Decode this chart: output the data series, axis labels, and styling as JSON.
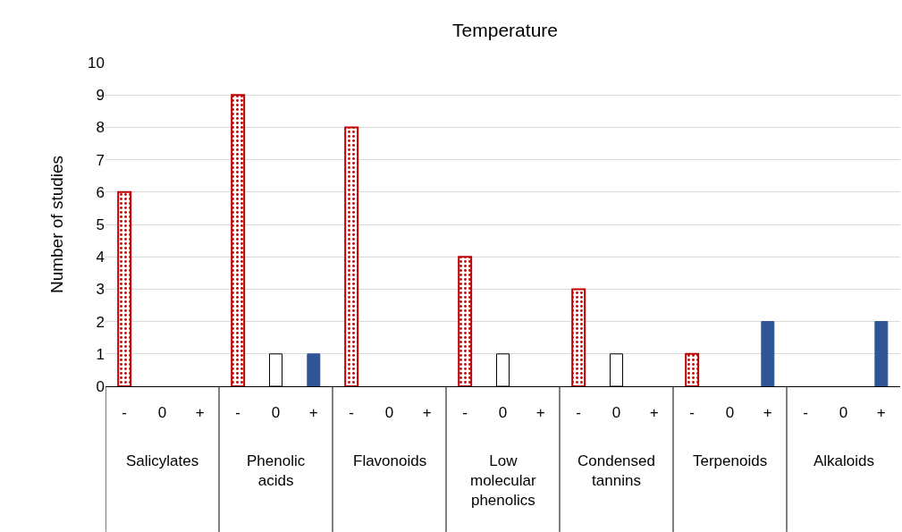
{
  "chart_data": {
    "type": "bar",
    "title": "Temperature",
    "ylabel": "Number of studies",
    "categories": [
      "Salicylates",
      "Phenolic acids",
      "Flavonoids",
      "Low molecular phenolics",
      "Condensed tannins",
      "Terpenoids",
      "Alkaloids"
    ],
    "series": [
      {
        "name": "-",
        "color": "#c00000",
        "values": [
          6,
          9,
          8,
          4,
          3,
          1,
          0
        ]
      },
      {
        "name": "0",
        "color": "#ffffff",
        "values": [
          0,
          1,
          0,
          1,
          1,
          0,
          0
        ]
      },
      {
        "name": "+",
        "color": "#2f5597",
        "values": [
          0,
          1,
          0,
          0,
          0,
          2,
          2
        ]
      }
    ],
    "ylim": [
      0,
      10
    ],
    "yticks": [
      0,
      1,
      2,
      3,
      4,
      5,
      6,
      7,
      8,
      9,
      10
    ],
    "grid": "y",
    "legend": false
  }
}
